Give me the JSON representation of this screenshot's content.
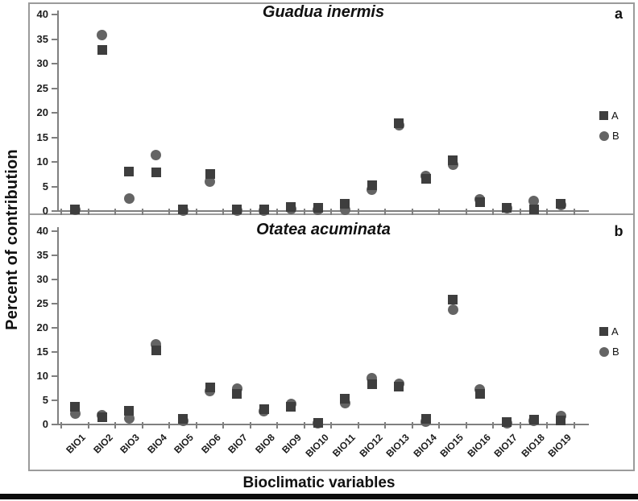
{
  "axes": {
    "ylabel": "Percent of contribution",
    "xlabel": "Bioclimatic variables",
    "yticks": [
      0,
      5,
      10,
      15,
      20,
      25,
      30,
      35,
      40
    ],
    "categories": [
      "BIO1",
      "BIO2",
      "BIO3",
      "BIO4",
      "BIO5",
      "BIO6",
      "BIO7",
      "BIO8",
      "BIO9",
      "BIO10",
      "BIO11",
      "BIO12",
      "BIO13",
      "BIO14",
      "BIO15",
      "BIO16",
      "BIO17",
      "BIO18",
      "BIO19"
    ]
  },
  "colors": {
    "series_a": "#3e3e3e",
    "series_b": "#646464",
    "axis": "#7f7f7f",
    "frame": "#9b9b9b",
    "text": "#111111"
  },
  "chart_data": [
    {
      "type": "scatter",
      "panel_label": "a",
      "title": "Guadua inermis",
      "xlabel": "Bioclimatic variables",
      "ylabel": "Percent of contribution",
      "ylim": [
        0,
        40
      ],
      "ytick_step": 5,
      "grid": false,
      "legend_position": "right-middle",
      "categories": [
        "BIO1",
        "BIO2",
        "BIO3",
        "BIO4",
        "BIO5",
        "BIO6",
        "BIO7",
        "BIO8",
        "BIO9",
        "BIO10",
        "BIO11",
        "BIO12",
        "BIO13",
        "BIO14",
        "BIO15",
        "BIO16",
        "BIO17",
        "BIO18",
        "BIO19"
      ],
      "series": [
        {
          "name": "A",
          "marker": "square",
          "values": [
            0.4,
            32.8,
            8.0,
            7.8,
            0.3,
            7.6,
            0.3,
            0.3,
            0.9,
            0.6,
            1.5,
            5.3,
            17.8,
            6.6,
            10.3,
            1.8,
            0.7,
            0.3,
            1.5
          ]
        },
        {
          "name": "B",
          "marker": "circle",
          "values": [
            0.2,
            35.8,
            2.5,
            11.4,
            0.1,
            6.0,
            0.1,
            0.1,
            0.4,
            0.3,
            0.3,
            4.3,
            17.4,
            7.2,
            9.4,
            2.4,
            0.5,
            2.0,
            1.2
          ]
        }
      ]
    },
    {
      "type": "scatter",
      "panel_label": "b",
      "title": "Otatea acuminata",
      "xlabel": "Bioclimatic variables",
      "ylabel": "Percent of contribution",
      "ylim": [
        0,
        40
      ],
      "ytick_step": 5,
      "grid": false,
      "legend_position": "right-middle",
      "categories": [
        "BIO1",
        "BIO2",
        "BIO3",
        "BIO4",
        "BIO5",
        "BIO6",
        "BIO7",
        "BIO8",
        "BIO9",
        "BIO10",
        "BIO11",
        "BIO12",
        "BIO13",
        "BIO14",
        "BIO15",
        "BIO16",
        "BIO17",
        "BIO18",
        "BIO19"
      ],
      "series": [
        {
          "name": "A",
          "marker": "square",
          "values": [
            3.7,
            1.5,
            2.9,
            15.4,
            1.1,
            7.7,
            6.3,
            3.1,
            3.7,
            0.4,
            5.4,
            8.3,
            7.8,
            1.1,
            25.8,
            6.3,
            0.5,
            1.0,
            0.8
          ]
        },
        {
          "name": "B",
          "marker": "circle",
          "values": [
            2.3,
            2.0,
            1.2,
            16.6,
            0.8,
            7.0,
            7.4,
            2.7,
            4.3,
            0.2,
            4.5,
            9.6,
            8.4,
            0.6,
            23.8,
            7.2,
            0.3,
            0.8,
            1.7
          ]
        }
      ]
    }
  ]
}
